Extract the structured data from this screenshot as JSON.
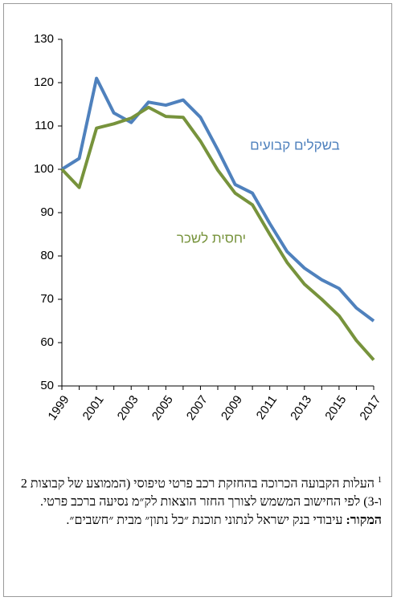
{
  "chart_data": {
    "type": "line",
    "x": [
      1999,
      2000,
      2001,
      2002,
      2003,
      2004,
      2005,
      2006,
      2007,
      2008,
      2009,
      2010,
      2011,
      2012,
      2013,
      2014,
      2015,
      2016,
      2017
    ],
    "series": [
      {
        "name": "בשקלים קבועים",
        "color": "#4f81bd",
        "values": [
          100,
          102.5,
          121,
          113,
          110.8,
          115.5,
          114.8,
          116,
          112,
          104.5,
          96.5,
          94.5,
          87.5,
          81,
          77.2,
          74.5,
          72.5,
          68,
          65
        ]
      },
      {
        "name": "יחסית לשכר",
        "color": "#77933c",
        "values": [
          100,
          95.8,
          109.5,
          110.5,
          111.8,
          114.3,
          112.2,
          112,
          106.5,
          99.8,
          94.5,
          91.8,
          85,
          78.5,
          73.5,
          70,
          66.2,
          60.5,
          56
        ]
      }
    ],
    "xlim": [
      1999,
      2017
    ],
    "xticks": [
      1999,
      2001,
      2003,
      2005,
      2007,
      2009,
      2011,
      2013,
      2015,
      2017
    ],
    "ylim": [
      50,
      130
    ],
    "yticks": [
      50,
      60,
      70,
      80,
      90,
      100,
      110,
      120,
      130
    ],
    "grid": false,
    "footnote_marker": "1",
    "footnote": "העלות הקבועה הכרוכה בהחזקת רכב פרטי טיפוסי (הממוצע של קבוצות 2 ו-3) לפי החישוב המשמש לצורך החזר הוצאות לק״מ נסיעה ברכב פרטי.",
    "source_label": "המקור:",
    "source": "עיבודי בנק ישראל לנתוני תוכנת ״כל נתון״ מבית ״חשבים״."
  }
}
